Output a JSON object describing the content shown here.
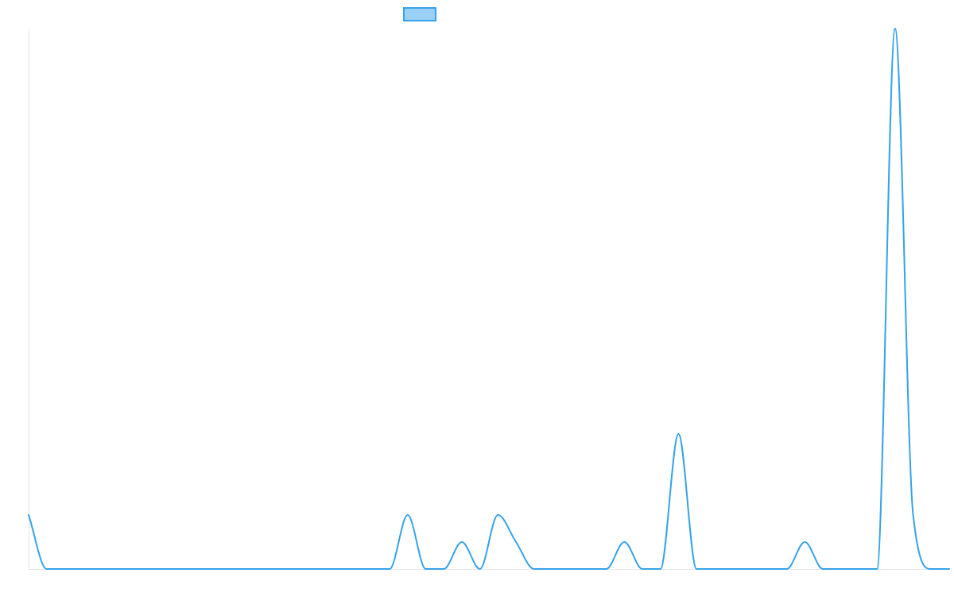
{
  "chart_data": {
    "type": "line",
    "title": "",
    "xlabel": "",
    "ylabel": "",
    "grid": false,
    "legend_placement": "top-center",
    "ylim": [
      0,
      20
    ],
    "x": [
      0,
      1,
      2,
      3,
      4,
      5,
      6,
      7,
      8,
      9,
      10,
      11,
      12,
      13,
      14,
      15,
      16,
      17,
      18,
      19,
      20,
      21,
      22,
      23,
      24,
      25,
      26,
      27,
      28,
      29,
      30,
      31,
      32,
      33,
      34,
      35,
      36,
      37,
      38,
      39,
      40,
      41,
      42,
      43,
      44,
      45,
      46,
      47,
      48,
      49,
      50,
      51
    ],
    "series": [
      {
        "color": "#36a2eb",
        "fill": "#9ad0f5",
        "values": [
          2,
          0,
          0,
          0,
          0,
          0,
          0,
          0,
          0,
          0,
          0,
          0,
          0,
          0,
          0,
          0,
          0,
          0,
          0,
          0,
          0,
          2,
          0,
          0,
          1,
          0,
          2,
          1,
          0,
          0,
          0,
          0,
          0,
          1,
          0,
          0,
          5,
          0,
          0,
          0,
          0,
          0,
          0,
          1,
          0,
          0,
          0,
          0,
          20,
          2,
          0,
          0
        ]
      }
    ]
  }
}
